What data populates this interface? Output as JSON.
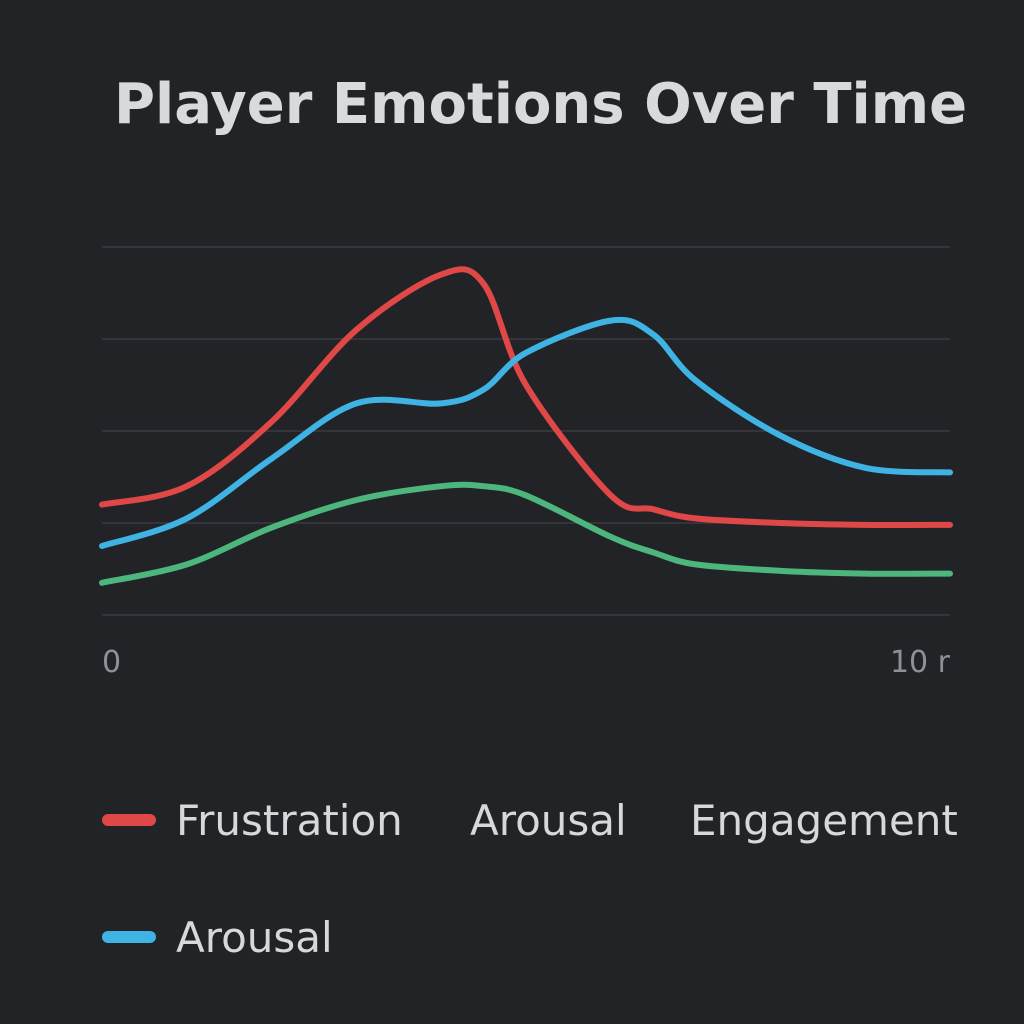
{
  "chart_data": {
    "type": "line",
    "title": "Player Emotions Over Time",
    "xlabel": "",
    "ylabel": "",
    "x_tick_labels": [
      "0",
      "10 r"
    ],
    "xlim": [
      0,
      10
    ],
    "ylim": [
      0,
      4
    ],
    "grid": true,
    "legend_placement": "bottom",
    "x": [
      0,
      1,
      2,
      3,
      4,
      4.5,
      5,
      6,
      6.5,
      7,
      8,
      9,
      10
    ],
    "series": [
      {
        "name": "Frustration",
        "color": "#e04848",
        "values": [
          1.2,
          1.4,
          2.1,
          3.1,
          3.7,
          3.6,
          2.5,
          1.3,
          1.15,
          1.05,
          1.0,
          0.98,
          0.98
        ]
      },
      {
        "name": "Arousal",
        "color": "#3fb3e4",
        "values": [
          0.75,
          1.05,
          1.7,
          2.3,
          2.3,
          2.45,
          2.85,
          3.2,
          3.05,
          2.55,
          1.95,
          1.6,
          1.55
        ]
      },
      {
        "name": "Engagement",
        "color": "#4db67d",
        "values": [
          0.35,
          0.55,
          0.95,
          1.25,
          1.4,
          1.4,
          1.3,
          0.85,
          0.68,
          0.55,
          0.48,
          0.45,
          0.45
        ]
      }
    ],
    "legend": [
      {
        "label": "Frustration",
        "color": "#e04848",
        "swatch": true
      },
      {
        "label": "Arousal",
        "color": "",
        "swatch": false
      },
      {
        "label": "Engagement",
        "color": "",
        "swatch": false
      },
      {
        "label": "Arousal",
        "color": "#3fb3e4",
        "swatch": true
      }
    ]
  }
}
